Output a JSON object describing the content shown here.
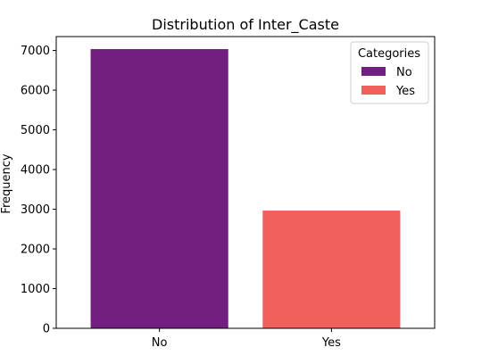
{
  "chart_data": {
    "type": "bar",
    "title": "Distribution of Inter_Caste",
    "xlabel": "",
    "ylabel": "Frequency",
    "categories": [
      "No",
      "Yes"
    ],
    "values": [
      7035,
      2965
    ],
    "colors": [
      "#721f81",
      "#f1605d"
    ],
    "ylim": [
      0,
      7350
    ],
    "yticks": [
      0,
      1000,
      2000,
      3000,
      4000,
      5000,
      6000,
      7000
    ],
    "grid": false,
    "legend": {
      "title": "Categories",
      "placement": "top-right",
      "entries": [
        "No",
        "Yes"
      ]
    }
  }
}
